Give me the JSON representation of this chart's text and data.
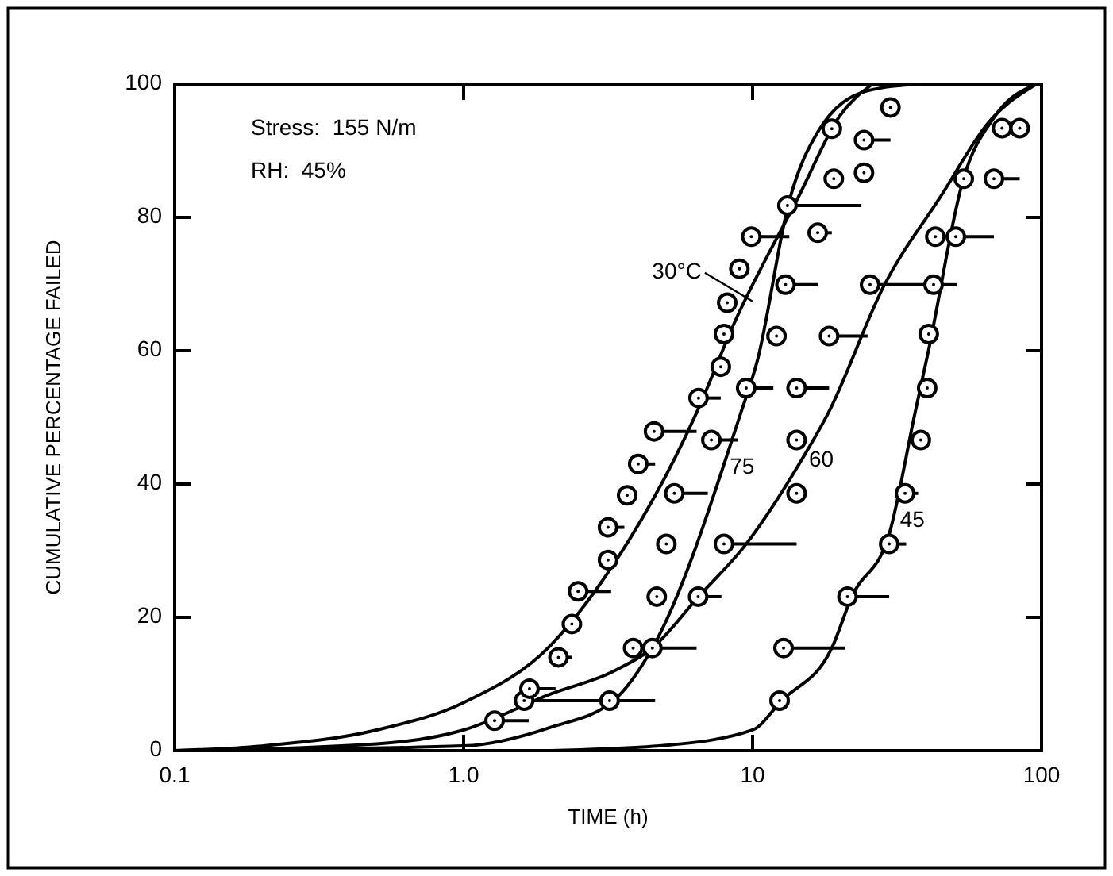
{
  "chart_data": {
    "type": "line",
    "xlabel": "TIME (h)",
    "ylabel": "CUMULATIVE PERCENTAGE FAILED",
    "annotations": [
      "Stress:  155 N/m",
      "RH:  45%"
    ],
    "log": "x",
    "xlim": [
      0.1,
      100
    ],
    "xticks": [
      0.1,
      {
        "value": 1,
        "label": "1.0"
      },
      10,
      100
    ],
    "ylim": [
      0,
      100
    ],
    "yticks": [
      0,
      20,
      40,
      60,
      80,
      100
    ],
    "grid": false,
    "marker": "none",
    "line_style": "solid",
    "series": [
      {
        "name": "30°C",
        "color": "#000000",
        "x": [
          0.1,
          0.2,
          0.5,
          1,
          2,
          3,
          6.4,
          8.65,
          14.5,
          20,
          26
        ],
        "values": [
          0,
          0.7,
          3.1,
          7.2,
          15.8,
          25.3,
          50.7,
          64.2,
          83.3,
          95.2,
          100
        ]
      },
      {
        "name": "75",
        "color": "#000000",
        "x": [
          0.1,
          1,
          2,
          3.3,
          4.5,
          9,
          10.4,
          13.4,
          16.8,
          25,
          38
        ],
        "values": [
          0,
          0.7,
          3.5,
          7.5,
          15.4,
          50,
          58.6,
          82.5,
          92.8,
          99,
          100
        ]
      },
      {
        "name": "60",
        "color": "#000000",
        "x": [
          0.1,
          0.5,
          1,
          2,
          3.3,
          4.5,
          6.5,
          9.5,
          14.4,
          18.3,
          28.6,
          45,
          66,
          96
        ],
        "values": [
          0,
          1,
          3.1,
          8.5,
          11.9,
          15.4,
          23.1,
          31,
          42.8,
          50.7,
          69.9,
          83.3,
          94.4,
          100
        ]
      },
      {
        "name": "45",
        "color": "#000000",
        "x": [
          2,
          5,
          10,
          12.6,
          18.8,
          22,
          29.7,
          36.5,
          40.7,
          53.5,
          69,
          96
        ],
        "values": [
          0,
          0.8,
          3.1,
          7.5,
          15.4,
          23,
          32.5,
          50.7,
          60.2,
          85.6,
          95.2,
          100
        ]
      },
      {
        "type": "scatter",
        "color": "#000000",
        "marker": "circle",
        "x": [
          1.28,
          1.62,
          1.69,
          2.13,
          2.37,
          2.49,
          3.16,
          3.16,
          3.68,
          4.02,
          4.56,
          6.5,
          7.76,
          7.96,
          8.17,
          9.0,
          9.9,
          13.2,
          18.8,
          30,
          24.3,
          19.1,
          24.3,
          16.8,
          13.0,
          12.1,
          9.5,
          7.2,
          5.36,
          5.03,
          4.66,
          3.86,
          3.2,
          73,
          84,
          53.8,
          68.4,
          42.9,
          50.5,
          25.5,
          42.3,
          18.4,
          40.7,
          14.2,
          40.2,
          14.2,
          38.2,
          14.2,
          33.7,
          7.96,
          29.7,
          6.48,
          21.3,
          4.5,
          12.8,
          12.4
        ],
        "values": [
          4.5,
          7.5,
          9.3,
          14,
          19,
          23.9,
          28.6,
          33.5,
          38.3,
          43,
          47.9,
          52.9,
          57.6,
          62.5,
          67.2,
          72.3,
          77.1,
          81.8,
          93.3,
          96.5,
          91.6,
          85.8,
          86.7,
          77.7,
          69.9,
          62.2,
          54.4,
          46.6,
          38.6,
          31.0,
          23.1,
          15.4,
          7.5,
          93.4,
          93.4,
          85.8,
          85.8,
          77.1,
          77.1,
          69.9,
          69.9,
          62.2,
          62.5,
          54.4,
          54.4,
          46.6,
          46.6,
          38.6,
          38.6,
          31.0,
          31.0,
          23.1,
          23.1,
          15.4,
          15.4,
          7.5
        ],
        "xerrors": [
          [
            1.28,
            1.68
          ],
          [
            1.62,
            3.2
          ],
          [
            1.69,
            2.08
          ],
          [
            2.13,
            2.37
          ],
          null,
          [
            2.49,
            3.24
          ],
          null,
          [
            3.16,
            3.6
          ],
          null,
          [
            4.02,
            4.6
          ],
          [
            4.56,
            6.4
          ],
          [
            6.5,
            7.76
          ],
          null,
          null,
          null,
          null,
          [
            9.9,
            13.4
          ],
          [
            13.2,
            23.8
          ],
          null,
          null,
          [
            24.3,
            30
          ],
          null,
          null,
          [
            16.8,
            18.8
          ],
          [
            13.0,
            16.8
          ],
          null,
          [
            9.5,
            11.8
          ],
          [
            7.2,
            8.9
          ],
          [
            5.36,
            7.0
          ],
          null,
          null,
          null,
          [
            3.2,
            4.6
          ],
          null,
          null,
          null,
          [
            68.4,
            84
          ],
          null,
          [
            50.5,
            68.4
          ],
          [
            25.5,
            42.3
          ],
          [
            42.3,
            51
          ],
          [
            18.4,
            25.0
          ],
          null,
          [
            14.2,
            18.4
          ],
          null,
          null,
          null,
          null,
          [
            33.7,
            37.4
          ],
          [
            7.96,
            14.2
          ],
          [
            29.7,
            34
          ],
          [
            6.48,
            7.8
          ],
          [
            21.3,
            29.7
          ],
          [
            4.5,
            6.4
          ],
          [
            12.8,
            20.9
          ],
          null
        ]
      }
    ]
  }
}
